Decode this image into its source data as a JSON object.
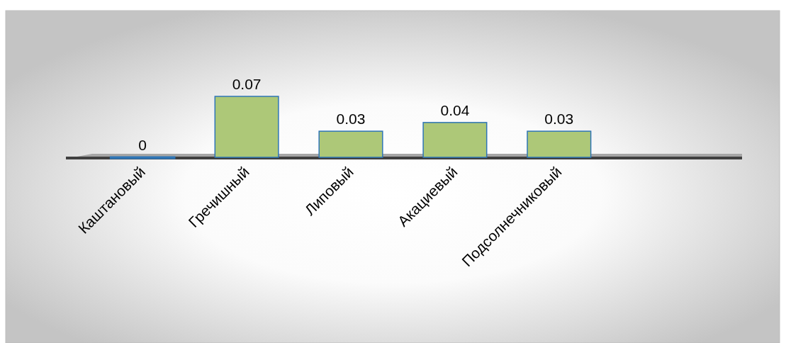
{
  "chart_data": {
    "type": "bar",
    "categories": [
      "Каштановый",
      "Гречишный",
      "Липовый",
      "Акациевый",
      "Подсолнечниковый"
    ],
    "values": [
      0,
      0.07,
      0.03,
      0.04,
      0.03
    ],
    "color": "#adc878",
    "data_labels": true
  }
}
